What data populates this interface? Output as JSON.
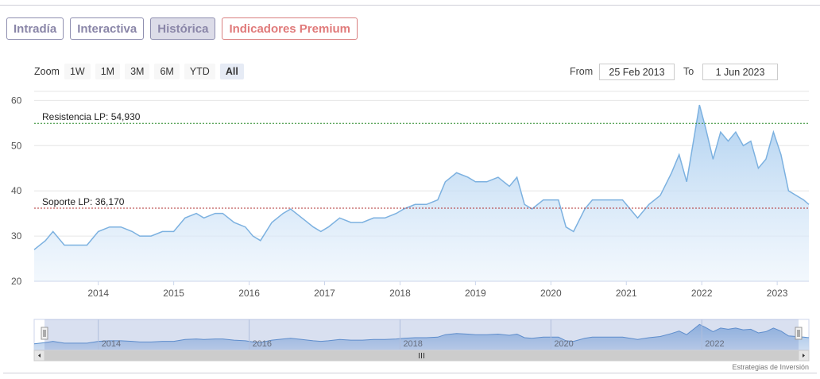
{
  "tabs": [
    {
      "label": "Intradía",
      "active": false
    },
    {
      "label": "Interactiva",
      "active": false
    },
    {
      "label": "Histórica",
      "active": true
    },
    {
      "label": "Indicadores Premium",
      "active": false
    }
  ],
  "zoom": {
    "label": "Zoom",
    "buttons": [
      "1W",
      "1M",
      "3M",
      "6M",
      "YTD",
      "All"
    ],
    "active": "All"
  },
  "range": {
    "from_label": "From",
    "from_value": "25 Feb 2013",
    "to_label": "To",
    "to_value": "1 Jun 2023"
  },
  "credit": "Estrategias de Inversión",
  "colors": {
    "line": "#7cb1e0",
    "fill_top": "#a9cdef",
    "fill_bottom": "#eaf3fc",
    "resistance": "#2a8a2a",
    "support": "#b03030"
  },
  "chart_data": {
    "type": "area",
    "y_ticks": [
      20,
      30,
      40,
      50,
      60
    ],
    "ylim": [
      20,
      62
    ],
    "x_ticks": [
      "2014",
      "2015",
      "2016",
      "2017",
      "2018",
      "2019",
      "2020",
      "2021",
      "2022",
      "2023"
    ],
    "navigator_ticks": [
      "2014",
      "2016",
      "2018",
      "2020",
      "2022"
    ],
    "lines": [
      {
        "label": "Resistencia LP: 54,930",
        "value": 54.93
      },
      {
        "label": "Soporte LP: 36,170",
        "value": 36.17
      }
    ],
    "series": [
      {
        "points": [
          [
            2013.15,
            27
          ],
          [
            2013.3,
            29
          ],
          [
            2013.4,
            31
          ],
          [
            2013.55,
            28
          ],
          [
            2013.7,
            28
          ],
          [
            2013.85,
            28
          ],
          [
            2014.0,
            31
          ],
          [
            2014.15,
            32
          ],
          [
            2014.3,
            32
          ],
          [
            2014.45,
            31
          ],
          [
            2014.55,
            30
          ],
          [
            2014.7,
            30
          ],
          [
            2014.85,
            31
          ],
          [
            2015.0,
            31
          ],
          [
            2015.15,
            34
          ],
          [
            2015.3,
            35
          ],
          [
            2015.4,
            34
          ],
          [
            2015.55,
            35
          ],
          [
            2015.65,
            35
          ],
          [
            2015.8,
            33
          ],
          [
            2015.95,
            32
          ],
          [
            2016.05,
            30
          ],
          [
            2016.15,
            29
          ],
          [
            2016.3,
            33
          ],
          [
            2016.45,
            35
          ],
          [
            2016.55,
            36
          ],
          [
            2016.7,
            34
          ],
          [
            2016.85,
            32
          ],
          [
            2016.95,
            31
          ],
          [
            2017.05,
            32
          ],
          [
            2017.2,
            34
          ],
          [
            2017.35,
            33
          ],
          [
            2017.5,
            33
          ],
          [
            2017.65,
            34
          ],
          [
            2017.8,
            34
          ],
          [
            2017.95,
            35
          ],
          [
            2018.05,
            36
          ],
          [
            2018.2,
            37
          ],
          [
            2018.35,
            37
          ],
          [
            2018.5,
            38
          ],
          [
            2018.6,
            42
          ],
          [
            2018.75,
            44
          ],
          [
            2018.9,
            43
          ],
          [
            2019.0,
            42
          ],
          [
            2019.15,
            42
          ],
          [
            2019.3,
            43
          ],
          [
            2019.45,
            41
          ],
          [
            2019.55,
            43
          ],
          [
            2019.65,
            37
          ],
          [
            2019.75,
            36
          ],
          [
            2019.9,
            38
          ],
          [
            2020.0,
            38
          ],
          [
            2020.1,
            38
          ],
          [
            2020.2,
            32
          ],
          [
            2020.3,
            31
          ],
          [
            2020.45,
            36
          ],
          [
            2020.55,
            38
          ],
          [
            2020.65,
            38
          ],
          [
            2020.8,
            38
          ],
          [
            2020.95,
            38
          ],
          [
            2021.05,
            36
          ],
          [
            2021.15,
            34
          ],
          [
            2021.3,
            37
          ],
          [
            2021.45,
            39
          ],
          [
            2021.6,
            44
          ],
          [
            2021.7,
            48
          ],
          [
            2021.8,
            42
          ],
          [
            2021.9,
            52
          ],
          [
            2021.97,
            59
          ],
          [
            2022.05,
            54
          ],
          [
            2022.15,
            47
          ],
          [
            2022.25,
            53
          ],
          [
            2022.35,
            51
          ],
          [
            2022.45,
            53
          ],
          [
            2022.55,
            50
          ],
          [
            2022.65,
            51
          ],
          [
            2022.75,
            45
          ],
          [
            2022.85,
            47
          ],
          [
            2022.95,
            53
          ],
          [
            2023.05,
            48
          ],
          [
            2023.15,
            40
          ],
          [
            2023.25,
            39
          ],
          [
            2023.35,
            38
          ],
          [
            2023.42,
            37
          ]
        ]
      }
    ]
  }
}
